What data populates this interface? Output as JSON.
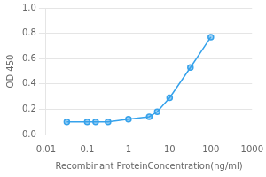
{
  "chart_data": {
    "type": "line",
    "x": [
      0.032,
      0.1,
      0.16,
      0.32,
      1.0,
      3.2,
      5.0,
      10.0,
      32.0,
      100.0
    ],
    "values": [
      0.1,
      0.1,
      0.1,
      0.1,
      0.12,
      0.14,
      0.18,
      0.29,
      0.53,
      0.77
    ],
    "xlabel": "Recombinant ProteinConcentration(ng/ml)",
    "ylabel": "OD 450",
    "log": "x",
    "xlim": [
      0.01,
      1000
    ],
    "xticks": [
      0.01,
      0.1,
      1,
      10,
      100,
      1000
    ],
    "ylim": [
      0,
      1.0
    ],
    "yticks": [
      {
        "value": 0,
        "label": "0.0"
      },
      0.2,
      0.4,
      0.6,
      0.8,
      {
        "value": 1.0,
        "label": "1.0"
      }
    ],
    "grid": "y",
    "marker": "circle"
  }
}
